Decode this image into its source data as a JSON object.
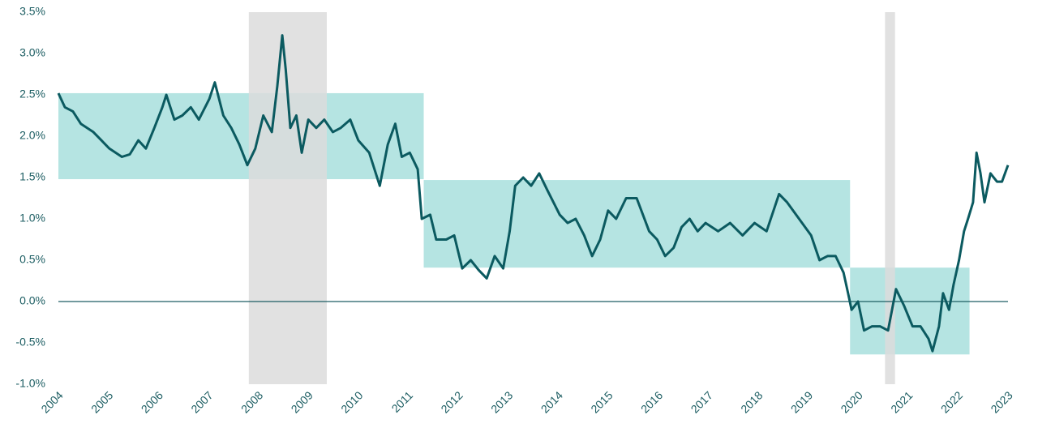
{
  "chart_data": {
    "type": "line",
    "xlim": [
      2004,
      2023
    ],
    "xticks": [
      2004,
      2005,
      2006,
      2007,
      2008,
      2009,
      2010,
      2011,
      2012,
      2013,
      2014,
      2015,
      2016,
      2017,
      2018,
      2019,
      2020,
      2021,
      2022,
      2023
    ],
    "ylim": [
      -1.0,
      3.5
    ],
    "yticks": [
      {
        "value": -1.0,
        "label": "-1.0%"
      },
      {
        "value": -0.5,
        "label": "-0.5%"
      },
      {
        "value": 0.0,
        "label": "0.0%"
      },
      {
        "value": 0.5,
        "label": "0.5%"
      },
      {
        "value": 1.0,
        "label": "1.0%"
      },
      {
        "value": 1.5,
        "label": "1.5%"
      },
      {
        "value": 2.0,
        "label": "2.0%"
      },
      {
        "value": 2.5,
        "label": "2.5%"
      },
      {
        "value": 3.0,
        "label": "3.0%"
      },
      {
        "value": 3.5,
        "label": "3.5%"
      }
    ],
    "recessions": [
      {
        "x": [
          2007.81,
          2009.37
        ],
        "color": "#dcdcdc"
      },
      {
        "x": [
          2020.54,
          2020.74
        ],
        "color": "#dcdcdc"
      }
    ],
    "ranges": [
      {
        "x": [
          2004,
          2011.31
        ],
        "y": [
          1.48,
          2.52
        ],
        "color": "#b5e4e2"
      },
      {
        "x": [
          2011.31,
          2019.84
        ],
        "y": [
          0.41,
          1.47
        ],
        "color": "#b5e4e2"
      },
      {
        "x": [
          2019.84,
          2022.23
        ],
        "y": [
          -0.64,
          0.41
        ],
        "color": "#b5e4e2"
      }
    ],
    "series": [
      {
        "color": "#0b5a60",
        "x": [
          2004.0,
          2004.13,
          2004.29,
          2004.45,
          2004.7,
          2004.86,
          2005.02,
          2005.27,
          2005.43,
          2005.6,
          2005.75,
          2005.92,
          2006.08,
          2006.16,
          2006.32,
          2006.48,
          2006.65,
          2006.81,
          2007.02,
          2007.13,
          2007.3,
          2007.46,
          2007.62,
          2007.78,
          2007.94,
          2008.1,
          2008.27,
          2008.38,
          2008.48,
          2008.55,
          2008.64,
          2008.76,
          2008.87,
          2009.0,
          2009.16,
          2009.32,
          2009.49,
          2009.65,
          2009.84,
          2010.0,
          2010.22,
          2010.43,
          2010.59,
          2010.74,
          2010.87,
          2011.03,
          2011.19,
          2011.27,
          2011.44,
          2011.56,
          2011.76,
          2011.92,
          2012.08,
          2012.25,
          2012.41,
          2012.57,
          2012.73,
          2012.9,
          2013.03,
          2013.14,
          2013.3,
          2013.46,
          2013.62,
          2013.78,
          2014.03,
          2014.19,
          2014.35,
          2014.52,
          2014.68,
          2014.84,
          2015.0,
          2015.16,
          2015.36,
          2015.57,
          2015.82,
          2015.98,
          2016.14,
          2016.31,
          2016.47,
          2016.63,
          2016.79,
          2016.95,
          2017.2,
          2017.44,
          2017.69,
          2017.93,
          2018.17,
          2018.42,
          2018.58,
          2018.82,
          2019.06,
          2019.23,
          2019.39,
          2019.55,
          2019.71,
          2019.8,
          2019.87,
          2020.0,
          2020.12,
          2020.28,
          2020.44,
          2020.6,
          2020.76,
          2020.92,
          2021.09,
          2021.25,
          2021.41,
          2021.49,
          2021.62,
          2021.7,
          2021.82,
          2021.91,
          2022.02,
          2022.12,
          2022.2,
          2022.3,
          2022.37,
          2022.45,
          2022.53,
          2022.65,
          2022.78,
          2022.88,
          2023.0
        ],
        "values": [
          2.52,
          2.35,
          2.3,
          2.15,
          2.05,
          1.95,
          1.85,
          1.75,
          1.78,
          1.95,
          1.85,
          2.1,
          2.35,
          2.5,
          2.2,
          2.25,
          2.35,
          2.2,
          2.45,
          2.65,
          2.25,
          2.1,
          1.9,
          1.65,
          1.85,
          2.25,
          2.05,
          2.6,
          3.22,
          2.8,
          2.1,
          2.25,
          1.8,
          2.2,
          2.1,
          2.2,
          2.05,
          2.1,
          2.2,
          1.95,
          1.8,
          1.4,
          1.9,
          2.15,
          1.75,
          1.8,
          1.6,
          1.0,
          1.05,
          0.75,
          0.75,
          0.8,
          0.4,
          0.5,
          0.38,
          0.28,
          0.55,
          0.4,
          0.85,
          1.4,
          1.5,
          1.4,
          1.55,
          1.35,
          1.05,
          0.95,
          1.0,
          0.8,
          0.55,
          0.75,
          1.1,
          1.0,
          1.25,
          1.25,
          0.85,
          0.75,
          0.55,
          0.65,
          0.9,
          1.0,
          0.85,
          0.95,
          0.85,
          0.95,
          0.8,
          0.95,
          0.85,
          1.3,
          1.2,
          1.0,
          0.8,
          0.5,
          0.55,
          0.55,
          0.35,
          0.1,
          -0.1,
          0.0,
          -0.35,
          -0.3,
          -0.3,
          -0.35,
          0.15,
          -0.05,
          -0.3,
          -0.3,
          -0.45,
          -0.6,
          -0.3,
          0.1,
          -0.1,
          0.2,
          0.5,
          0.85,
          1.0,
          1.2,
          1.8,
          1.55,
          1.2,
          1.55,
          1.45,
          1.45,
          1.65
        ]
      }
    ]
  }
}
